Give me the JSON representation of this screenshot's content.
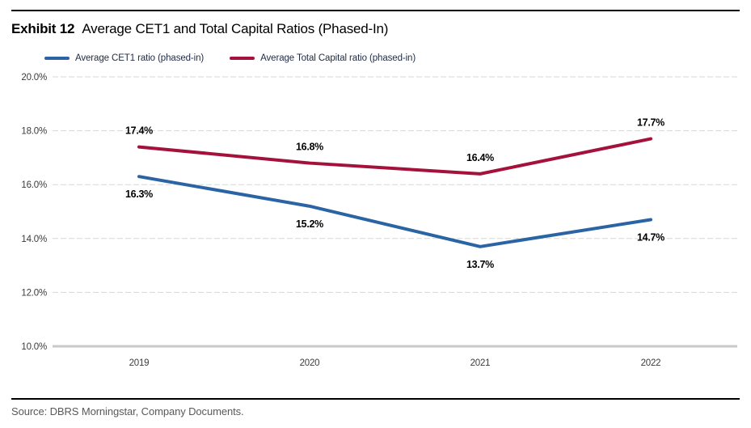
{
  "header": {
    "exhibit_label": "Exhibit 12",
    "title": "Average CET1 and Total Capital Ratios (Phased-In)"
  },
  "legend": [
    {
      "label": "Average CET1 ratio (phased-in)",
      "color": "#2a64a5"
    },
    {
      "label": "Average Total Capital ratio (phased-in)",
      "color": "#a4123c"
    }
  ],
  "chart_data": {
    "type": "line",
    "title": "Average CET1 and Total Capital Ratios (Phased-In)",
    "categories": [
      "2019",
      "2020",
      "2021",
      "2022"
    ],
    "series": [
      {
        "name": "Average CET1 ratio (phased-in)",
        "color": "#2a64a5",
        "values": [
          16.3,
          15.2,
          13.7,
          14.7
        ],
        "label_position": "below"
      },
      {
        "name": "Average Total Capital ratio (phased-in)",
        "color": "#a4123c",
        "values": [
          17.4,
          16.8,
          16.4,
          17.7
        ],
        "label_position": "above"
      }
    ],
    "xlabel": "",
    "ylabel": "",
    "ylim": [
      10.0,
      20.0
    ],
    "ytick_step": 2.0,
    "yticks": [
      "20.0%",
      "18.0%",
      "16.0%",
      "14.0%",
      "12.0%",
      "10.0%"
    ],
    "grid": "horizontal",
    "data_labels": true,
    "legend_position": "top-left"
  },
  "footer": {
    "source": "Source: DBRS Morningstar, Company Documents."
  },
  "colors": {
    "gridline": "#d7d7d7",
    "baseline": "#c9c9c9",
    "axis_text": "#3b3b3b",
    "source_text": "#58595b"
  }
}
